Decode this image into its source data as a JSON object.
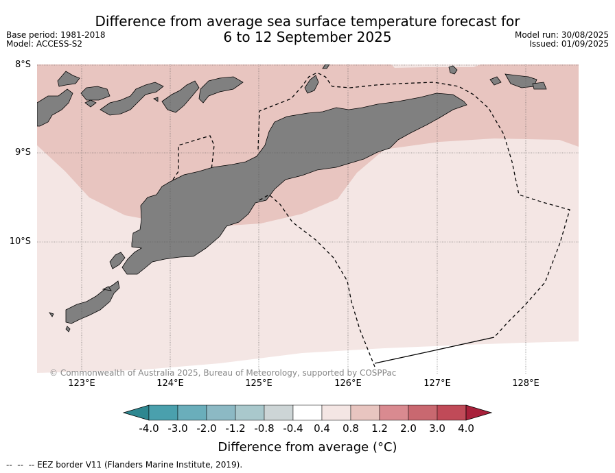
{
  "header": {
    "title_line1": "Difference from average sea surface temperature forecast for",
    "title_line2": "6 to 12 September 2025",
    "base_period": "Base period: 1981-2018",
    "model": "Model: ACCESS-S2",
    "model_run": "Model run: 30/08/2025",
    "issued": "Issued: 01/09/2025"
  },
  "map": {
    "lat_labels": [
      "8°S",
      "9°S",
      "10°S"
    ],
    "lon_labels": [
      "123°E",
      "124°E",
      "125°E",
      "126°E",
      "127°E",
      "128°E"
    ],
    "copyright": "© Commonwealth of Australia 2025, Bureau of Meteorology, supported by COSPPac",
    "land_color": "#808080",
    "anomaly_0_4_to_0_8_color": "#f4e6e4",
    "anomaly_0_8_to_1_2_color": "#e8c5c0"
  },
  "colorbar": {
    "title": "Difference from average (°C)",
    "tick_labels": [
      "-4.0",
      "-3.0",
      "-2.0",
      "-1.2",
      "-0.8",
      "-0.4",
      "0.4",
      "0.8",
      "1.2",
      "2.0",
      "3.0",
      "4.0"
    ],
    "colors": [
      "#2e8790",
      "#4aa0ad",
      "#6aaebb",
      "#8cb9c4",
      "#a9c8cc",
      "#cdd5d6",
      "#ffffff",
      "#f4e6e4",
      "#e8c5c0",
      "#d98a90",
      "#c96870",
      "#c04a58",
      "#a8203a"
    ]
  },
  "legend": {
    "eez": "EEZ border V11 (Flanders Marine Institute, 2019)."
  }
}
